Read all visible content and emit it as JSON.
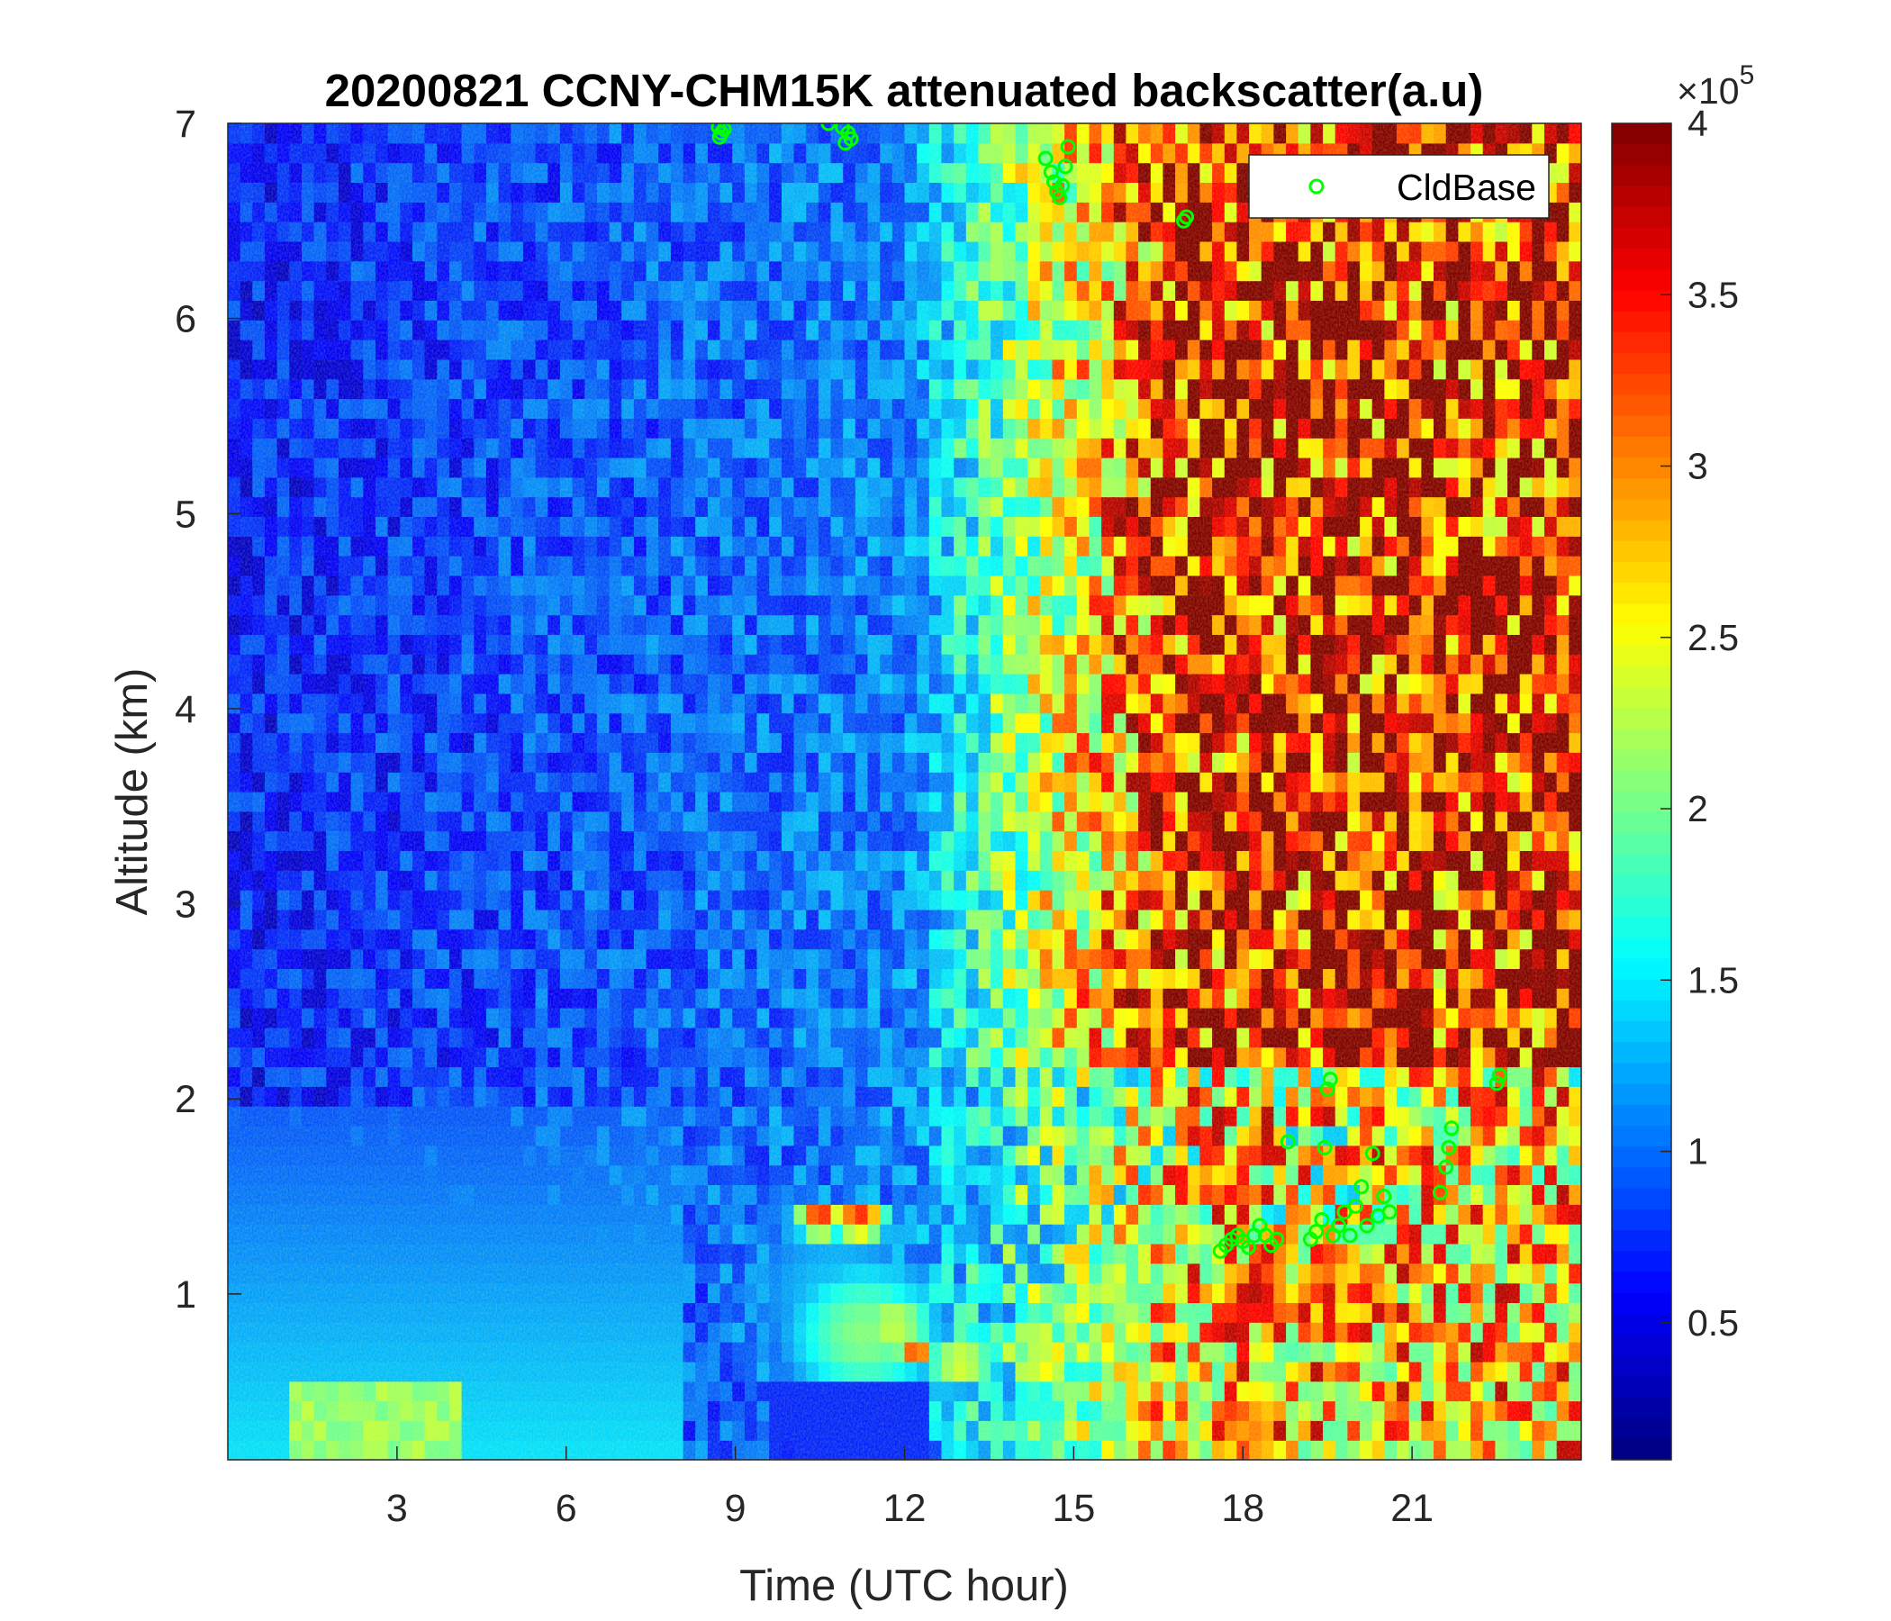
{
  "chart_data": {
    "type": "heatmap",
    "title": "20200821 CCNY-CHM15K attenuated backscatter(a.u)",
    "xlabel": "Time (UTC hour)",
    "ylabel": "Altitude (km)",
    "xlim": [
      0,
      24
    ],
    "ylim": [
      0.15,
      7
    ],
    "x_ticks": [
      3,
      6,
      9,
      12,
      15,
      18,
      21
    ],
    "x_tick_labels": [
      "3",
      "6",
      "9",
      "12",
      "15",
      "18",
      "21"
    ],
    "y_ticks": [
      1,
      2,
      3,
      4,
      5,
      6,
      7
    ],
    "y_tick_labels": [
      "1",
      "2",
      "3",
      "4",
      "5",
      "6",
      "7"
    ],
    "colormap": "jet",
    "colorbar": {
      "range": [
        0.1,
        4
      ],
      "ticks": [
        0.5,
        1,
        1.5,
        2,
        2.5,
        3,
        3.5,
        4
      ],
      "tick_labels": [
        "0.5",
        "1",
        "1.5",
        "2",
        "2.5",
        "3",
        "3.5",
        "4"
      ],
      "multiplier": "×10",
      "exponent": "5"
    },
    "legend": {
      "location": "top-right",
      "entries": [
        "CldBase"
      ]
    },
    "series": [
      {
        "name": "CldBase",
        "marker": "circle",
        "color": "#00ff00",
        "points": [
          [
            8.7,
            6.98
          ],
          [
            8.75,
            6.95
          ],
          [
            8.8,
            6.97
          ],
          [
            8.72,
            6.93
          ],
          [
            10.65,
            7.0
          ],
          [
            10.9,
            6.98
          ],
          [
            11.0,
            6.95
          ],
          [
            11.05,
            6.92
          ],
          [
            10.95,
            6.9
          ],
          [
            14.5,
            6.82
          ],
          [
            14.6,
            6.75
          ],
          [
            14.65,
            6.7
          ],
          [
            14.7,
            6.65
          ],
          [
            14.75,
            6.62
          ],
          [
            14.8,
            6.68
          ],
          [
            14.85,
            6.78
          ],
          [
            14.9,
            6.88
          ],
          [
            16.95,
            6.5
          ],
          [
            17.0,
            6.52
          ],
          [
            17.6,
            1.22
          ],
          [
            17.7,
            1.25
          ],
          [
            17.8,
            1.28
          ],
          [
            17.9,
            1.3
          ],
          [
            18.0,
            1.27
          ],
          [
            18.1,
            1.24
          ],
          [
            18.2,
            1.3
          ],
          [
            18.3,
            1.35
          ],
          [
            18.4,
            1.3
          ],
          [
            18.5,
            1.25
          ],
          [
            18.6,
            1.28
          ],
          [
            18.8,
            1.78
          ],
          [
            19.2,
            1.28
          ],
          [
            19.3,
            1.32
          ],
          [
            19.4,
            1.38
          ],
          [
            19.45,
            1.75
          ],
          [
            19.5,
            2.05
          ],
          [
            19.55,
            2.1
          ],
          [
            19.6,
            1.3
          ],
          [
            19.7,
            1.35
          ],
          [
            19.8,
            1.42
          ],
          [
            19.9,
            1.3
          ],
          [
            20.0,
            1.45
          ],
          [
            20.1,
            1.55
          ],
          [
            20.2,
            1.35
          ],
          [
            20.3,
            1.72
          ],
          [
            20.4,
            1.4
          ],
          [
            20.5,
            1.5
          ],
          [
            20.6,
            1.42
          ],
          [
            21.5,
            1.52
          ],
          [
            21.6,
            1.65
          ],
          [
            21.65,
            1.75
          ],
          [
            21.7,
            1.85
          ],
          [
            22.5,
            2.08
          ],
          [
            22.55,
            2.12
          ]
        ]
      }
    ]
  }
}
